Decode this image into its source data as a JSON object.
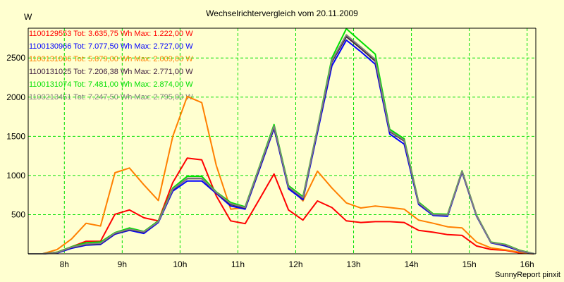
{
  "chart_data": {
    "type": "line",
    "title": "Wechselrichtervergleich vom 20.11.2009",
    "ylabel": "W",
    "xlabel": "",
    "footer": "SunnyReport pinxit",
    "xlim": [
      7.375,
      16.15
    ],
    "ylim": [
      0,
      2880
    ],
    "grid": true,
    "legend_placement": "top-left",
    "x_ticks": [
      8,
      9,
      10,
      11,
      12,
      13,
      14,
      15,
      16
    ],
    "x_tick_labels": [
      "8h",
      "9h",
      "10h",
      "11h",
      "12h",
      "13h",
      "14h",
      "15h",
      "16h"
    ],
    "y_ticks": [
      500,
      1000,
      1500,
      2000,
      2500
    ],
    "y_tick_labels": [
      "500",
      "1000",
      "1500",
      "2000",
      "2500"
    ],
    "x": [
      7.375,
      7.625,
      7.875,
      8.125,
      8.375,
      8.625,
      8.875,
      9.125,
      9.375,
      9.625,
      9.875,
      10.125,
      10.375,
      10.625,
      10.875,
      11.125,
      11.375,
      11.625,
      11.875,
      12.125,
      12.375,
      12.625,
      12.875,
      13.125,
      13.375,
      13.625,
      13.875,
      14.125,
      14.375,
      14.625,
      14.875,
      15.125,
      15.375,
      15.625,
      15.875,
      16.125
    ],
    "series": [
      {
        "name": "1100129553",
        "legend": "1100129553 Tot: 3.635,75 Wh Max: 1.222,00 W",
        "color": "#ff0000",
        "values": [
          0,
          0,
          20,
          90,
          160,
          160,
          505,
          560,
          460,
          420,
          910,
          1222,
          1200,
          740,
          420,
          385,
          700,
          1020,
          560,
          430,
          675,
          590,
          420,
          400,
          410,
          410,
          400,
          300,
          275,
          245,
          235,
          100,
          55,
          45,
          10,
          0
        ]
      },
      {
        "name": "1100131006",
        "legend": "1100131006 Tot: 5.879,00 Wh Max: 2.009,00 W",
        "color": "#ff8000",
        "values": [
          0,
          0,
          55,
          190,
          390,
          355,
          1035,
          1095,
          880,
          680,
          1500,
          2009,
          1930,
          1130,
          570,
          590,
          1100,
          1600,
          870,
          675,
          1055,
          840,
          650,
          585,
          610,
          590,
          570,
          430,
          390,
          345,
          330,
          150,
          75,
          50,
          20,
          0
        ]
      },
      {
        "name": "1100131074",
        "legend": "1100131074 Tot: 7.481,00 Wh Max: 2.874,00 W",
        "color": "#00e000",
        "values": [
          0,
          0,
          20,
          90,
          140,
          150,
          270,
          330,
          285,
          420,
          840,
          990,
          990,
          790,
          655,
          600,
          1120,
          1650,
          870,
          730,
          1600,
          2500,
          2874,
          2710,
          2550,
          1590,
          1470,
          660,
          510,
          505,
          1060,
          495,
          150,
          120,
          45,
          0
        ]
      },
      {
        "name": "1100130966",
        "legend": "1100130966 Tot: 7.077,50 Wh Max: 2.727,00 W",
        "color": "#0000ff",
        "values": [
          0,
          0,
          10,
          70,
          110,
          120,
          250,
          300,
          260,
          400,
          800,
          930,
          930,
          770,
          610,
          570,
          1080,
          1600,
          830,
          690,
          1550,
          2400,
          2727,
          2580,
          2420,
          1530,
          1400,
          630,
          490,
          480,
          1040,
          480,
          140,
          100,
          35,
          0
        ]
      },
      {
        "name": "1100131025",
        "legend": "1100131025 Tot: 7.206,38 Wh Max: 2.771,00 W",
        "color": "#402040",
        "values": [
          0,
          0,
          15,
          80,
          120,
          130,
          260,
          310,
          275,
          410,
          820,
          960,
          960,
          780,
          630,
          585,
          1100,
          1620,
          850,
          710,
          1580,
          2450,
          2771,
          2620,
          2460,
          1560,
          1440,
          645,
          500,
          495,
          1050,
          490,
          145,
          110,
          40,
          0
        ]
      },
      {
        "name": "1100213451",
        "legend": "1100213451 Tot: 7.247,50 Wh Max: 2.795,00 W",
        "color": "#808080",
        "values": [
          0,
          0,
          15,
          85,
          125,
          135,
          265,
          315,
          280,
          410,
          825,
          965,
          965,
          785,
          640,
          590,
          1110,
          1630,
          855,
          715,
          1590,
          2470,
          2795,
          2640,
          2480,
          1570,
          1450,
          650,
          500,
          495,
          1055,
          490,
          145,
          115,
          40,
          0
        ]
      }
    ],
    "legend_order": [
      0,
      3,
      1,
      4,
      2,
      5
    ]
  },
  "colors": {
    "background": "#ffffd0",
    "grid": "#00e000",
    "axis": "#000000"
  }
}
